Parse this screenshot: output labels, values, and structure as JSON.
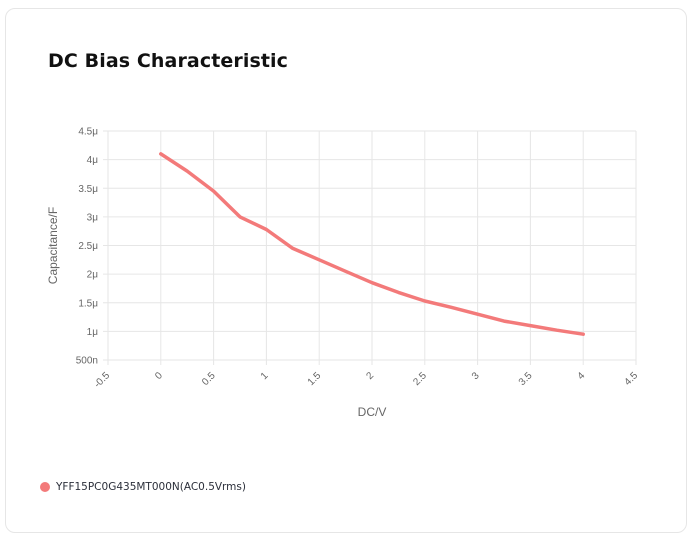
{
  "card": {
    "title": "DC Bias Characteristic"
  },
  "colors": {
    "series": "#f37a7a",
    "grid": "#e6e6e6",
    "axis_text": "#666666"
  },
  "chart_data": {
    "type": "line",
    "title": "DC Bias Characteristic",
    "xlabel": "DC/V",
    "ylabel": "Capacitance/F",
    "xlim": [
      -0.5,
      4.5
    ],
    "ylim": [
      5e-07,
      4.5e-06
    ],
    "x_ticks": [
      -0.5,
      0,
      0.5,
      1,
      1.5,
      2,
      2.5,
      3,
      3.5,
      4,
      4.5
    ],
    "x_tick_labels": [
      "-0.5",
      "0",
      "0.5",
      "1",
      "1.5",
      "2",
      "2.5",
      "3",
      "3.5",
      "4",
      "4.5"
    ],
    "y_ticks": [
      5e-07,
      1e-06,
      1.5e-06,
      2e-06,
      2.5e-06,
      3e-06,
      3.5e-06,
      4e-06,
      4.5e-06
    ],
    "y_tick_labels": [
      "500n",
      "1μ",
      "1.5μ",
      "2μ",
      "2.5μ",
      "3μ",
      "3.5μ",
      "4μ",
      "4.5μ"
    ],
    "grid": true,
    "legend_position": "bottom-left",
    "series": [
      {
        "name": "YFF15PC0G435MT000N(AC0.5Vrms)",
        "x": [
          0,
          0.25,
          0.5,
          0.75,
          1,
          1.25,
          1.5,
          1.75,
          2,
          2.25,
          2.5,
          2.75,
          3,
          3.25,
          3.5,
          3.75,
          4
        ],
        "values": [
          4.1e-06,
          3.8e-06,
          3.45e-06,
          3e-06,
          2.78e-06,
          2.45e-06,
          2.25e-06,
          2.05e-06,
          1.85e-06,
          1.68e-06,
          1.53e-06,
          1.42e-06,
          1.3e-06,
          1.18e-06,
          1.1e-06,
          1.02e-06,
          9.5e-07
        ]
      }
    ]
  }
}
